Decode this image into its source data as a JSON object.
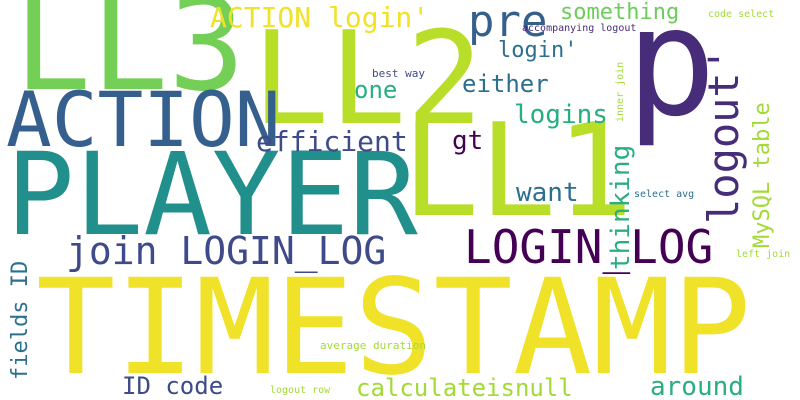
{
  "palette": {
    "yellow": "#f0e228",
    "lime": "#b8de29",
    "green": "#73cf56",
    "teal": "#21908c",
    "teal_blue": "#2c6f8e",
    "blue": "#3e4a89",
    "navy": "#355f8d",
    "purple": "#472c7a",
    "dark": "#440154",
    "sea": "#29af7f",
    "light_green": "#a2da37",
    "gray_green": "#6ccd5a"
  },
  "words": [
    {
      "text": "TIMESTAMP",
      "color": "yellow"
    },
    {
      "text": "PLAYER",
      "color": "teal"
    },
    {
      "text": "LL3",
      "color": "green"
    },
    {
      "text": "LL2",
      "color": "lime"
    },
    {
      "text": "LL1",
      "color": "lime"
    },
    {
      "text": "p",
      "color": "purple"
    },
    {
      "text": "ACTION",
      "color": "navy"
    },
    {
      "text": "LOGIN_LOG",
      "color": "dark"
    },
    {
      "text": "join LOGIN_LOG",
      "color": "blue"
    },
    {
      "text": "logout'",
      "color": "purple"
    },
    {
      "text": "pre",
      "color": "navy"
    },
    {
      "text": "ACTION login'",
      "color": "yellow"
    },
    {
      "text": "something",
      "color": "gray_green"
    },
    {
      "text": "login'",
      "color": "teal_blue"
    },
    {
      "text": "either",
      "color": "teal_blue"
    },
    {
      "text": "one",
      "color": "sea"
    },
    {
      "text": "logins",
      "color": "sea"
    },
    {
      "text": "efficient",
      "color": "blue"
    },
    {
      "text": "gt",
      "color": "dark"
    },
    {
      "text": "want",
      "color": "teal_blue"
    },
    {
      "text": "thinking",
      "color": "sea"
    },
    {
      "text": "MySQL table",
      "color": "light_green"
    },
    {
      "text": "fields ID",
      "color": "teal_blue"
    },
    {
      "text": "ID code",
      "color": "blue"
    },
    {
      "text": "calculateisnull",
      "color": "light_green"
    },
    {
      "text": "around",
      "color": "sea"
    },
    {
      "text": "code select",
      "color": "light_green"
    },
    {
      "text": "accompanying logout",
      "color": "purple"
    },
    {
      "text": "best way",
      "color": "blue"
    },
    {
      "text": "inner join",
      "color": "light_green"
    },
    {
      "text": "select avg",
      "color": "teal_blue"
    },
    {
      "text": "left join",
      "color": "light_green"
    },
    {
      "text": "average duration",
      "color": "light_green"
    },
    {
      "text": "logout row",
      "color": "light_green"
    }
  ]
}
